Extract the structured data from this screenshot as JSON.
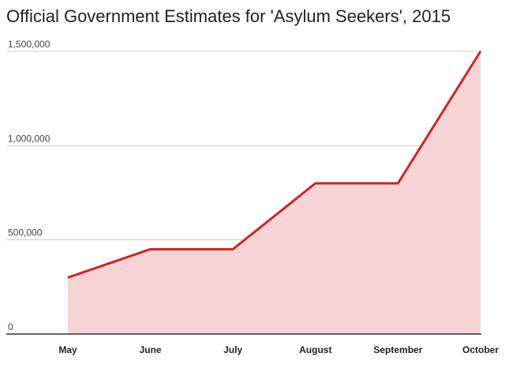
{
  "chart_data": {
    "type": "area",
    "title": "Official Government Estimates for 'Asylum Seekers', 2015",
    "xlabel": "",
    "ylabel": "",
    "categories": [
      "May",
      "June",
      "July",
      "August",
      "September",
      "October"
    ],
    "values": [
      300000,
      450000,
      450000,
      800000,
      800000,
      1500000
    ],
    "ylim": [
      0,
      1500000
    ],
    "yticks": [
      0,
      500000,
      1000000,
      1500000
    ],
    "ytick_labels": [
      "0",
      "500,000",
      "1,000,000",
      "1,500,000"
    ],
    "grid": true,
    "legend": "none",
    "colors": {
      "line": "#c62828",
      "fill": "#f8d3d5",
      "grid": "#cccccc",
      "baseline": "#333333"
    }
  }
}
